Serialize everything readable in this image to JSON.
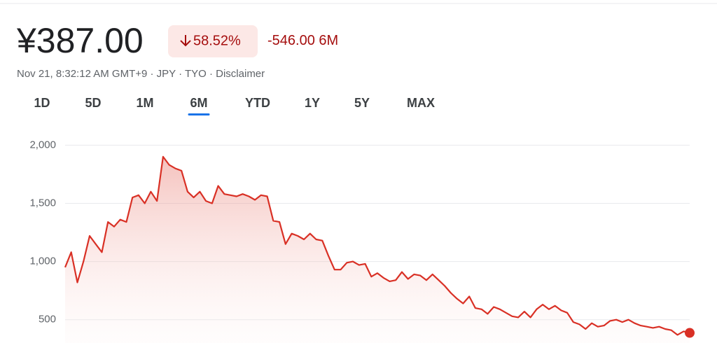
{
  "header": {
    "price": "¥387.00",
    "change_percent": "58.52%",
    "change": "-546.00",
    "period": "6M",
    "info": "Nov 21, 8:32:12 AM GMT+9 · JPY · TYO · ",
    "disclaimer": "Disclaimer"
  },
  "tabs": {
    "items": [
      "1D",
      "5D",
      "1M",
      "6M",
      "YTD",
      "1Y",
      "5Y",
      "MAX"
    ],
    "selected": 3
  },
  "chart_data": {
    "type": "area",
    "color": "#d93025",
    "grid": true,
    "values": [
      950,
      1080,
      820,
      1000,
      1220,
      1150,
      1080,
      1340,
      1300,
      1360,
      1340,
      1550,
      1570,
      1500,
      1600,
      1520,
      1900,
      1830,
      1800,
      1780,
      1600,
      1550,
      1600,
      1520,
      1500,
      1650,
      1580,
      1570,
      1560,
      1580,
      1560,
      1530,
      1570,
      1560,
      1350,
      1340,
      1150,
      1240,
      1220,
      1190,
      1240,
      1190,
      1180,
      1050,
      930,
      930,
      990,
      1000,
      970,
      980,
      870,
      900,
      860,
      830,
      840,
      910,
      850,
      890,
      880,
      840,
      890,
      840,
      790,
      730,
      680,
      640,
      700,
      600,
      590,
      550,
      610,
      590,
      560,
      530,
      520,
      570,
      520,
      590,
      630,
      590,
      620,
      580,
      560,
      480,
      460,
      420,
      470,
      440,
      450,
      490,
      500,
      480,
      500,
      470,
      450,
      440,
      430,
      440,
      420,
      410,
      370,
      400,
      387
    ],
    "ylim": [
      300,
      2050
    ],
    "yticks": [
      {
        "value": 2000,
        "label": "2,000"
      },
      {
        "value": 1500,
        "label": "1,500"
      },
      {
        "value": 1000,
        "label": "1,000"
      },
      500
    ]
  }
}
